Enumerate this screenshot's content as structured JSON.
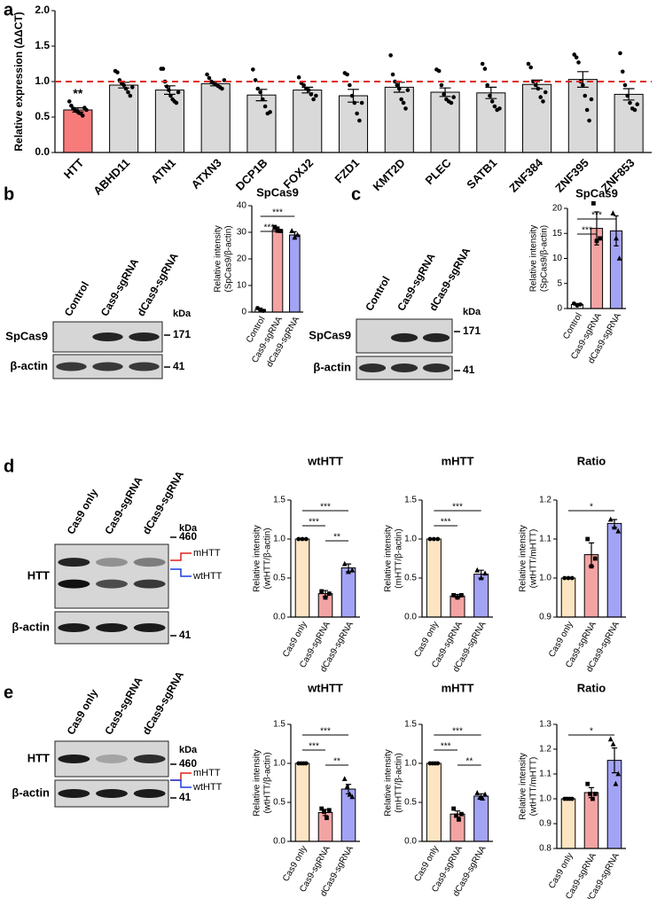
{
  "panel_labels": [
    "a",
    "b",
    "c",
    "d",
    "e"
  ],
  "blots": [
    {
      "lanes": [
        "Control",
        "Cas9-sgRNA",
        "dCas9-sgRNA"
      ],
      "rows": [
        "SpCas9",
        "β-actin"
      ],
      "unit": "kDa",
      "markers": [
        171,
        41
      ]
    },
    {
      "lanes": [
        "Control",
        "Cas9-sgRNA",
        "dCas9-sgRNA"
      ],
      "rows": [
        "SpCas9",
        "β-actin"
      ],
      "unit": "kDa",
      "markers": [
        171,
        41
      ]
    },
    {
      "lanes": [
        "Cas9 only",
        "Cas9-sgRNA",
        "dCas9-sgRNA"
      ],
      "rows": [
        "HTT",
        "β-actin"
      ],
      "unit": "kDa",
      "markers": [
        460,
        41
      ],
      "bands": [
        "mHTT",
        "wtHTT"
      ]
    },
    {
      "lanes": [
        "Cas9 only",
        "Cas9-sgRNA",
        "dCas9-sgRNA"
      ],
      "rows": [
        "HTT",
        "β-actin"
      ],
      "unit": "kDa",
      "markers": [
        460,
        41
      ],
      "bands": [
        "mHTT",
        "wtHTT"
      ]
    }
  ],
  "chart_data": [
    {
      "type": "bar",
      "ylabel": "Relative expression (ΔΔCT)",
      "categories": [
        "HTT",
        "ABHD11",
        "ATN1",
        "ATXN3",
        "DCP1B",
        "FOXJ2",
        "FZD1",
        "KMT2D",
        "PLEC",
        "SATB1",
        "ZNF384",
        "ZNF395",
        "ZNF853"
      ],
      "values": [
        0.6,
        0.95,
        0.88,
        0.97,
        0.81,
        0.88,
        0.8,
        0.92,
        0.85,
        0.84,
        0.96,
        1.03,
        0.82
      ],
      "errors": [
        0.03,
        0.04,
        0.06,
        0.03,
        0.08,
        0.04,
        0.09,
        0.07,
        0.06,
        0.08,
        0.06,
        0.11,
        0.08
      ],
      "points": [
        [
          0.72,
          0.66,
          0.62,
          0.6,
          0.58,
          0.56,
          0.55,
          0.52,
          0.63,
          0.6
        ],
        [
          1.15,
          1.13,
          1.02,
          0.98,
          0.95,
          0.9,
          0.85,
          0.8,
          0.92
        ],
        [
          1.18,
          1.18,
          1.0,
          0.93,
          0.88,
          0.8,
          0.75,
          0.72,
          0.7,
          0.85
        ],
        [
          1.1,
          1.05,
          1.0,
          0.98,
          0.96,
          0.94,
          0.92,
          0.9,
          1.02
        ],
        [
          1.17,
          1.02,
          0.9,
          0.85,
          0.75,
          0.65,
          0.55,
          0.57
        ],
        [
          1.06,
          0.98,
          0.95,
          0.9,
          0.88,
          0.82,
          0.75,
          0.8
        ],
        [
          1.12,
          1.1,
          0.95,
          0.8,
          0.7,
          0.55,
          0.45,
          0.7
        ],
        [
          1.37,
          1.1,
          1.0,
          0.95,
          0.9,
          0.75,
          0.7,
          0.62,
          0.88
        ],
        [
          1.17,
          1.15,
          0.95,
          0.82,
          0.75,
          0.72,
          0.7,
          0.78
        ],
        [
          1.25,
          1.18,
          0.95,
          0.8,
          0.72,
          0.65,
          0.6,
          0.62
        ],
        [
          1.25,
          1.2,
          1.0,
          0.95,
          0.9,
          0.78,
          0.72,
          0.85
        ],
        [
          1.38,
          1.34,
          1.27,
          1.0,
          0.95,
          0.8,
          0.6,
          0.45,
          0.75
        ],
        [
          1.4,
          1.14,
          0.95,
          0.8,
          0.7,
          0.62,
          0.6,
          0.68
        ]
      ],
      "colors": [
        "#f77b7b",
        "#d9d9d9",
        "#d9d9d9",
        "#d9d9d9",
        "#d9d9d9",
        "#d9d9d9",
        "#d9d9d9",
        "#d9d9d9",
        "#d9d9d9",
        "#d9d9d9",
        "#d9d9d9",
        "#d9d9d9",
        "#d9d9d9"
      ],
      "markers": [
        "circle"
      ],
      "reference_line": {
        "value": 1,
        "color": "#e0201c"
      },
      "significance": [
        {
          "label": "**",
          "from": "HTT",
          "to": "HTT"
        }
      ],
      "ylim": [
        0,
        2
      ],
      "yticks": [
        {
          "value": 0,
          "label": "0.0"
        },
        {
          "value": 0.5,
          "label": "0.5"
        },
        {
          "value": 1,
          "label": "1.0"
        },
        {
          "value": 1.5,
          "label": "1.5"
        },
        {
          "value": 2,
          "label": "2.0"
        }
      ]
    },
    {
      "type": "bar",
      "title": "SpCas9",
      "ylabel": [
        "Relative intensity",
        "(SpCas9/β-actin)"
      ],
      "categories": [
        "Control",
        "Cas9-sgRNA",
        "dCas9-sgRNA"
      ],
      "values": [
        1,
        31,
        29
      ],
      "errors": [
        0.5,
        1,
        1.2
      ],
      "points": [
        [
          1.5,
          0.8,
          0.5
        ],
        [
          32,
          31,
          30.5
        ],
        [
          30.5,
          28,
          29
        ]
      ],
      "colors": [
        "#ffffff",
        "#f4a3a3",
        "#a3a3f5"
      ],
      "markers": [
        "circle",
        "square",
        "triangle"
      ],
      "significance": [
        {
          "label": "***",
          "from": "Control",
          "to": "dCas9-sgRNA"
        },
        {
          "label": "***",
          "from": "Control",
          "to": "Cas9-sgRNA"
        }
      ],
      "ylim": [
        0,
        40
      ],
      "yticks": [
        0,
        10,
        20,
        30,
        40
      ]
    },
    {
      "type": "bar",
      "title": "SpCas9",
      "ylabel": [
        "Relative intensity",
        "(SpCas9/β-actin)"
      ],
      "categories": [
        "Control",
        "Cas9-sgRNA",
        "dCas9-sgRNA"
      ],
      "values": [
        0.8,
        16,
        15.5
      ],
      "errors": [
        0.2,
        3.3,
        3
      ],
      "points": [
        [
          1,
          0.6,
          0.8
        ],
        [
          21,
          13.5,
          14
        ],
        [
          19,
          14,
          10
        ]
      ],
      "colors": [
        "#ffffff",
        "#f4a3a3",
        "#a3a3f5"
      ],
      "markers": [
        "circle",
        "square",
        "triangle"
      ],
      "significance": [
        {
          "label": "***",
          "from": "Control",
          "to": "dCas9-sgRNA"
        },
        {
          "label": "***",
          "from": "Control",
          "to": "Cas9-sgRNA"
        }
      ],
      "ylim": [
        0,
        20
      ],
      "yticks": [
        0,
        5,
        10,
        15,
        20
      ]
    },
    {
      "type": "bar",
      "title": "wtHTT",
      "ylabel": [
        "Relative intensity",
        "(wtHTT/β-actin)"
      ],
      "categories": [
        "Cas9 only",
        "Cas9-sgRNA",
        "dCas9-sgRNA"
      ],
      "values": [
        1,
        0.3,
        0.63
      ],
      "errors": [
        0,
        0.04,
        0.05
      ],
      "points": [
        [
          1,
          1,
          1
        ],
        [
          0.33,
          0.25,
          0.3
        ],
        [
          0.68,
          0.58,
          0.6
        ]
      ],
      "colors": [
        "#fde5c3",
        "#f4a3a3",
        "#a3a3f5"
      ],
      "markers": [
        "circle",
        "square",
        "triangle"
      ],
      "significance": [
        {
          "label": "***",
          "from": "Cas9 only",
          "to": "dCas9-sgRNA"
        },
        {
          "label": "***",
          "from": "Cas9 only",
          "to": "Cas9-sgRNA"
        },
        {
          "label": "**",
          "from": "Cas9-sgRNA",
          "to": "dCas9-sgRNA"
        }
      ],
      "ylim": [
        0,
        1.5
      ],
      "yticks": [
        {
          "value": 0,
          "label": "0.0"
        },
        0.5,
        {
          "value": 1,
          "label": "1.0"
        },
        1.5
      ]
    },
    {
      "type": "bar",
      "title": "mHTT",
      "ylabel": [
        "Relative intensity",
        "(mHTT/β-actin)"
      ],
      "categories": [
        "Cas9 only",
        "Cas9-sgRNA",
        "dCas9-sgRNA"
      ],
      "values": [
        1,
        0.27,
        0.55
      ],
      "errors": [
        0,
        0.02,
        0.05
      ],
      "points": [
        [
          1,
          1,
          1
        ],
        [
          0.28,
          0.25,
          0.28
        ],
        [
          0.6,
          0.5,
          0.56
        ]
      ],
      "colors": [
        "#fde5c3",
        "#f4a3a3",
        "#a3a3f5"
      ],
      "markers": [
        "circle",
        "square",
        "triangle"
      ],
      "significance": [
        {
          "label": "***",
          "from": "Cas9 only",
          "to": "dCas9-sgRNA"
        },
        {
          "label": "***",
          "from": "Cas9 only",
          "to": "Cas9-sgRNA"
        }
      ],
      "ylim": [
        0,
        1.5
      ],
      "yticks": [
        {
          "value": 0,
          "label": "0.0"
        },
        0.5,
        {
          "value": 1,
          "label": "1.0"
        },
        1.5
      ]
    },
    {
      "type": "bar",
      "title": "Ratio",
      "ylabel": [
        "Relative intensity",
        "(wtHTT/mHTT)"
      ],
      "categories": [
        "Cas9 only",
        "Cas9-sgRNA",
        "dCas9-sgRNA"
      ],
      "values": [
        1,
        1.06,
        1.14
      ],
      "errors": [
        0,
        0.03,
        0.01
      ],
      "points": [
        [
          1,
          1,
          1
        ],
        [
          1.1,
          1.03,
          1.05
        ],
        [
          1.15,
          1.13,
          1.12
        ]
      ],
      "colors": [
        "#fde5c3",
        "#f4a3a3",
        "#a3a3f5"
      ],
      "markers": [
        "circle",
        "square",
        "triangle"
      ],
      "significance": [
        {
          "label": "*",
          "from": "Cas9 only",
          "to": "dCas9-sgRNA"
        }
      ],
      "ylim": [
        0.9,
        1.2
      ],
      "yticks": [
        0.9,
        {
          "value": 1,
          "label": "1.0"
        },
        1.1,
        1.2
      ]
    },
    {
      "type": "bar",
      "title": "wtHTT",
      "ylabel": [
        "Relative intensity",
        "(wtHTT/β-actin)"
      ],
      "categories": [
        "Cas9 only",
        "Cas9-sgRNA",
        "dCas9-sgRNA"
      ],
      "values": [
        1,
        0.37,
        0.67
      ],
      "errors": [
        0,
        0.04,
        0.06
      ],
      "points": [
        [
          1,
          1,
          1,
          1
        ],
        [
          0.42,
          0.38,
          0.3,
          0.4
        ],
        [
          0.8,
          0.7,
          0.6,
          0.57
        ]
      ],
      "colors": [
        "#fde5c3",
        "#f4a3a3",
        "#a3a3f5"
      ],
      "markers": [
        "circle",
        "square",
        "triangle"
      ],
      "significance": [
        {
          "label": "***",
          "from": "Cas9 only",
          "to": "dCas9-sgRNA"
        },
        {
          "label": "***",
          "from": "Cas9 only",
          "to": "Cas9-sgRNA"
        },
        {
          "label": "**",
          "from": "Cas9-sgRNA",
          "to": "dCas9-sgRNA"
        }
      ],
      "ylim": [
        0,
        1.5
      ],
      "yticks": [
        {
          "value": 0,
          "label": "0.0"
        },
        0.5,
        {
          "value": 1,
          "label": "1.0"
        },
        1.5
      ]
    },
    {
      "type": "bar",
      "title": "mHTT",
      "ylabel": [
        "Relative intensity",
        "(mHTT/β-actin)"
      ],
      "categories": [
        "Cas9 only",
        "Cas9-sgRNA",
        "dCas9-sgRNA"
      ],
      "values": [
        1,
        0.35,
        0.58
      ],
      "errors": [
        0,
        0.04,
        0.03
      ],
      "points": [
        [
          1,
          1,
          1,
          1
        ],
        [
          0.42,
          0.33,
          0.28,
          0.35
        ],
        [
          0.62,
          0.56,
          0.55,
          0.6
        ]
      ],
      "colors": [
        "#fde5c3",
        "#f4a3a3",
        "#a3a3f5"
      ],
      "markers": [
        "circle",
        "square",
        "triangle"
      ],
      "significance": [
        {
          "label": "***",
          "from": "Cas9 only",
          "to": "dCas9-sgRNA"
        },
        {
          "label": "***",
          "from": "Cas9 only",
          "to": "Cas9-sgRNA"
        },
        {
          "label": "**",
          "from": "Cas9-sgRNA",
          "to": "dCas9-sgRNA"
        }
      ],
      "ylim": [
        0,
        1.5
      ],
      "yticks": [
        {
          "value": 0,
          "label": "0.0"
        },
        0.5,
        {
          "value": 1,
          "label": "1.0"
        },
        1.5
      ]
    },
    {
      "type": "bar",
      "title": "Ratio",
      "ylabel": [
        "Relative intensity",
        "(wtHTT/mHTT)"
      ],
      "categories": [
        "Cas9 only",
        "Cas9-sgRNA",
        "dCas9-sgRNA"
      ],
      "values": [
        1,
        1.025,
        1.155
      ],
      "errors": [
        0,
        0.02,
        0.05
      ],
      "points": [
        [
          1,
          1,
          1,
          1
        ],
        [
          1.06,
          1.02,
          1.0,
          1.02
        ],
        [
          1.24,
          1.22,
          1.06,
          1.1
        ]
      ],
      "colors": [
        "#fde5c3",
        "#f4a3a3",
        "#a3a3f5"
      ],
      "markers": [
        "circle",
        "square",
        "triangle"
      ],
      "significance": [
        {
          "label": "*",
          "from": "Cas9 only",
          "to": "dCas9-sgRNA"
        }
      ],
      "ylim": [
        0.8,
        1.3
      ],
      "yticks": [
        0.8,
        0.9,
        {
          "value": 1,
          "label": "1.0"
        },
        1.1,
        1.2,
        1.3
      ]
    }
  ]
}
